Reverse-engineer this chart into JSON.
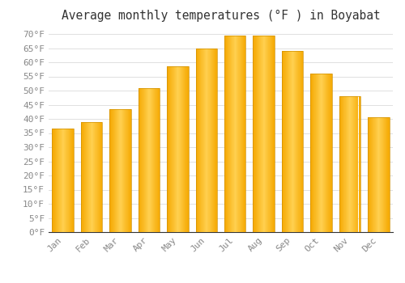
{
  "title": "Average monthly temperatures (°F ) in Boyabat",
  "months": [
    "Jan",
    "Feb",
    "Mar",
    "Apr",
    "May",
    "Jun",
    "Jul",
    "Aug",
    "Sep",
    "Oct",
    "Nov",
    "Dec"
  ],
  "values": [
    36.5,
    39.0,
    43.5,
    51.0,
    58.5,
    65.0,
    69.5,
    69.5,
    64.0,
    56.0,
    48.0,
    40.5
  ],
  "bar_color_center": "#FFD050",
  "bar_color_edge": "#F5A800",
  "ylim": [
    0,
    72
  ],
  "yticks": [
    0,
    5,
    10,
    15,
    20,
    25,
    30,
    35,
    40,
    45,
    50,
    55,
    60,
    65,
    70
  ],
  "background_color": "#FFFFFF",
  "grid_color": "#E0E0E0",
  "title_fontsize": 10.5,
  "tick_fontsize": 8,
  "font_family": "monospace",
  "tick_color": "#888888",
  "title_color": "#333333"
}
